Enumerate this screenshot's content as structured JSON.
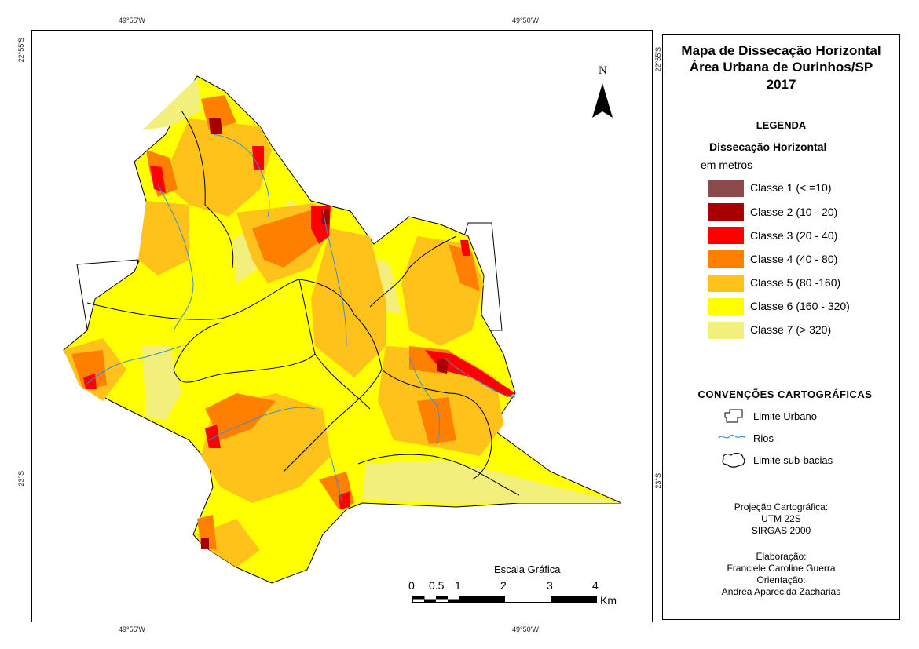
{
  "coordinates": {
    "top_left": "49°55'W",
    "top_right": "49°50'W",
    "bottom_left": "49°55'W",
    "bottom_right": "49°50'W",
    "left_top": "22°55'S",
    "left_bottom": "23°S",
    "right_top": "22°55'S",
    "right_bottom": "23°S"
  },
  "north": "N",
  "scale": {
    "title": "Escala Gráfica",
    "ticks": [
      "0",
      "0.5",
      "1",
      "2",
      "3",
      "4"
    ],
    "unit": "Km"
  },
  "title_lines": [
    "Mapa de Dissecação Horizontal",
    "Área Urbana de Ourinhos/SP",
    "2017"
  ],
  "legend": {
    "heading": "LEGENDA",
    "subheading": "Dissecação Horizontal",
    "unit_note": "em metros",
    "classes": [
      {
        "label": "Classe 1 (< =10)",
        "color": "#8B4A4A"
      },
      {
        "label": "Classe 2 (10 - 20)",
        "color": "#A80000"
      },
      {
        "label": "Classe 3 (20 - 40)",
        "color": "#FF0000"
      },
      {
        "label": "Classe 4 (40 - 80)",
        "color": "#FF8000"
      },
      {
        "label": "Classe 5 (80 -160)",
        "color": "#FFC21A"
      },
      {
        "label": "Classe 6 (160 - 320)",
        "color": "#FFFF00"
      },
      {
        "label": "Classe 7 (> 320)",
        "color": "#F2EF7A"
      }
    ]
  },
  "conventions": {
    "heading": "CONVENÇÕES CARTOGRÁFICAS",
    "items": [
      {
        "label": "Limite Urbano",
        "icon": "urban-limit-icon"
      },
      {
        "label": "Rios",
        "icon": "river-icon"
      },
      {
        "label": "Limite sub-bacias",
        "icon": "subbasin-limit-icon"
      }
    ]
  },
  "projection": [
    "Projeção Cartográfica:",
    "UTM 22S",
    "SIRGAS 2000"
  ],
  "credits": [
    "Elaboração:",
    "Franciele Caroline Guerra",
    "Orientação:",
    "Andréa Aparecida Zacharias"
  ]
}
